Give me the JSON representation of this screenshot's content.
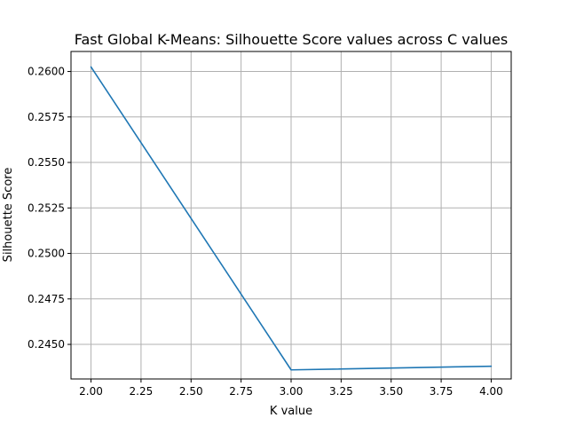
{
  "chart_data": {
    "type": "line",
    "title": "Fast Global K-Means: Silhouette Score values across C values",
    "xlabel": "K value",
    "ylabel": "Silhouette Score",
    "xlim": [
      1.9,
      4.1
    ],
    "ylim": [
      0.2431,
      0.2611
    ],
    "x_ticks": [
      "2.00",
      "2.25",
      "2.50",
      "2.75",
      "3.00",
      "3.25",
      "3.50",
      "3.75",
      "4.00"
    ],
    "y_ticks": [
      "0.2450",
      "0.2475",
      "0.2500",
      "0.2525",
      "0.2550",
      "0.2575",
      "0.2600"
    ],
    "grid": true,
    "series": [
      {
        "color": "#1f77b4",
        "x": [
          2,
          3,
          4
        ],
        "y": [
          0.26025,
          0.2436,
          0.2438
        ]
      }
    ]
  }
}
